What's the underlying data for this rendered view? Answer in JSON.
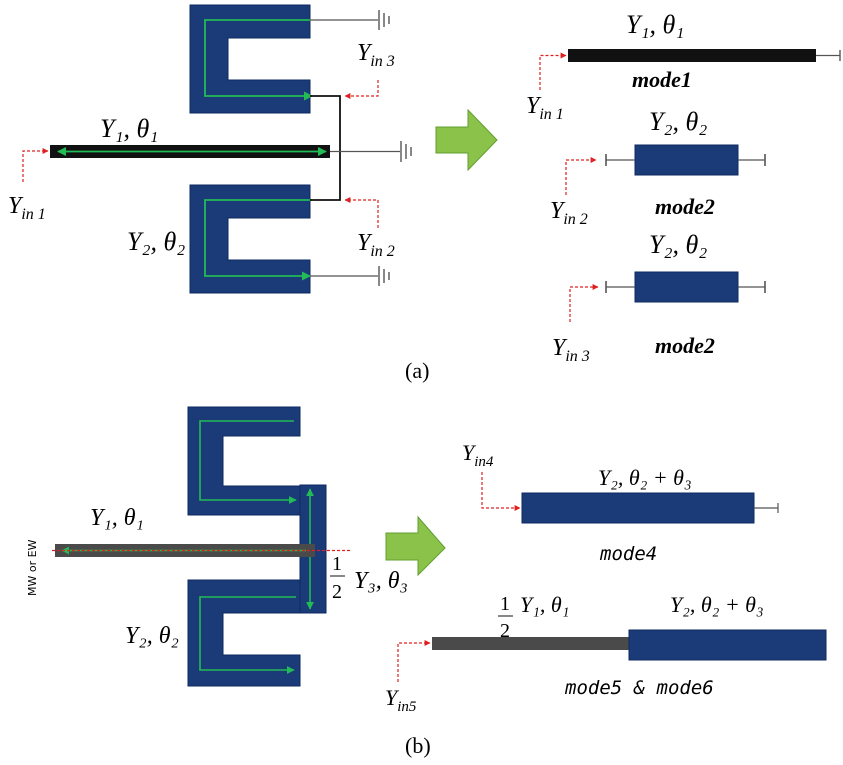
{
  "colors": {
    "stub_fill": "#1a3a78",
    "stub_edge": "#0d2a60",
    "feed_line": "#111111",
    "feed_line_b": "#4a4a4a",
    "current_arrow": "#22bb55",
    "port_arrow": "#e02020",
    "big_arrow_fill": "#8bc34a",
    "ground": "#555555"
  },
  "icons": {
    "transform_arrow": "right-arrow-icon",
    "ground": "ground-icon",
    "port": "port-arrow-icon"
  },
  "part_a": {
    "label": "(a)",
    "stub1_label": "Y₁, θ₁",
    "stub2_label": "Y₂, θ₂",
    "port1": "Y",
    "port1_sub": "in 1",
    "port2": "Y",
    "port2_sub": "in 2",
    "port3": "Y",
    "port3_sub": "in 3",
    "eq1_label": "Y₁, θ₁",
    "eq1_port": "Y",
    "eq1_port_sub": "in 1",
    "eq1_mode": "mode1",
    "eq2_label": "Y₂, θ₂",
    "eq2_port": "Y",
    "eq2_port_sub": "in 2",
    "eq2_mode": "mode2",
    "eq3_label": "Y₂, θ₂",
    "eq3_port": "Y",
    "eq3_port_sub": "in 3",
    "eq3_mode": "mode2"
  },
  "part_b": {
    "label": "(b)",
    "side_label": "MW or EW",
    "stub1_label": "Y₁, θ₁",
    "stub2_label": "Y₂, θ₂",
    "half_num": "1",
    "half_den": "2",
    "stub3_label": "Y₃, θ₃",
    "eq4_port": "Y",
    "eq4_port_sub": "in4",
    "eq4_label": "Y₂, θ₂ + θ₃",
    "eq4_mode": "mode4",
    "eq5_half_num": "1",
    "eq5_half_den": "2",
    "eq5_label_left": "Y₁, θ₁",
    "eq5_label_right": "Y₂, θ₂ + θ₃",
    "eq5_port": "Y",
    "eq5_port_sub": "in5",
    "eq5_mode": "mode5 & mode6"
  }
}
